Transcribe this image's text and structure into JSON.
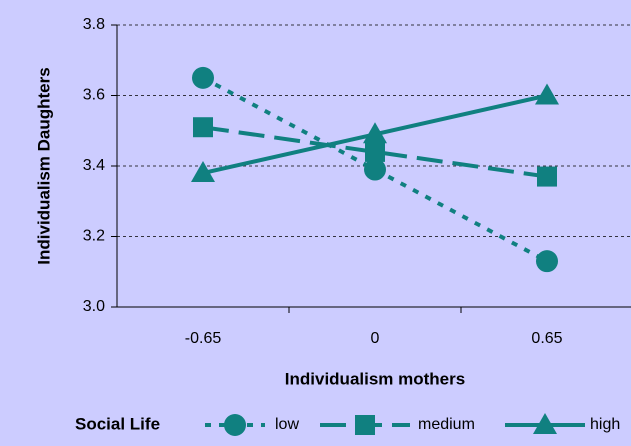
{
  "chart_data": {
    "type": "line",
    "x_label": "Individualism mothers",
    "y_label": "Individualism Daughters",
    "legend_title": "Social Life",
    "categories": [
      "-0.65",
      "0",
      "0.65"
    ],
    "series": [
      {
        "name": "low",
        "color": "#108080",
        "marker": "circle",
        "dash": "dot",
        "values": [
          3.65,
          3.39,
          3.13
        ]
      },
      {
        "name": "medium",
        "color": "#108080",
        "marker": "square",
        "dash": "long",
        "values": [
          3.51,
          3.44,
          3.37
        ]
      },
      {
        "name": "high",
        "color": "#108080",
        "marker": "triangle",
        "dash": "solid",
        "values": [
          3.38,
          3.49,
          3.6
        ]
      }
    ],
    "ylim": [
      3.0,
      3.8
    ],
    "yticks": [
      {
        "value": 3.0,
        "label": "3.0"
      },
      3.2,
      3.4,
      3.6,
      3.8
    ],
    "grid": true,
    "legend": "bottom"
  }
}
